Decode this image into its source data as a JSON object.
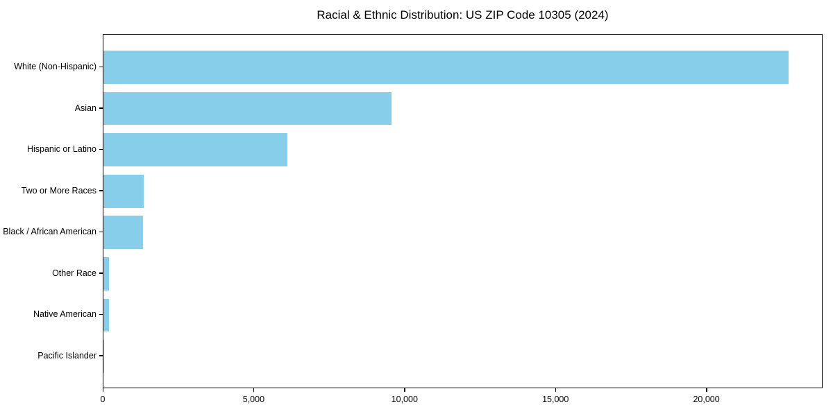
{
  "figure": {
    "background_color": "#ffffff",
    "spine_color": "#000000",
    "text_color": "#000000"
  },
  "chart_data": {
    "type": "bar",
    "orientation": "horizontal",
    "title": "Racial & Ethnic Distribution: US ZIP Code 10305 (2024)",
    "categories": [
      "White (Non-Hispanic)",
      "Asian",
      "Hispanic or Latino",
      "Two or More Races",
      "Black / African American",
      "Other Race",
      "Native American",
      "Pacific Islander"
    ],
    "values": [
      22700,
      9540,
      6100,
      1330,
      1320,
      190,
      180,
      12
    ],
    "bar_color": "#87CEEB",
    "xlabel": "",
    "ylabel": "",
    "xlim": [
      0,
      23850
    ],
    "xticks": [
      0,
      5000,
      10000,
      15000,
      20000
    ],
    "xtick_labels": [
      "0",
      "5,000",
      "10,000",
      "15,000",
      "20,000"
    ],
    "grid": false,
    "legend": null
  }
}
